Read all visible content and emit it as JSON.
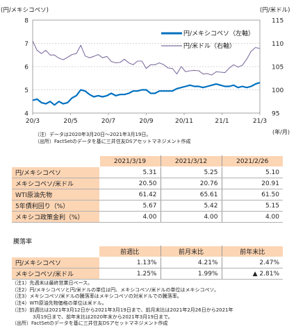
{
  "chart_data": {
    "type": "line",
    "ylabel_left": "(円/メキシコペソ)",
    "ylabel_right": "(円/米ドル)",
    "xlabel": "(年/月)",
    "x_ticks": [
      "20/3",
      "20/5",
      "20/7",
      "20/9",
      "20/11",
      "21/1",
      "21/3"
    ],
    "y_left_ticks": [
      "4",
      "5",
      "6",
      "7",
      "8"
    ],
    "y_right_ticks": [
      "95",
      "100",
      "105",
      "110",
      "115"
    ],
    "ylim_left": [
      4,
      8
    ],
    "ylim_right": [
      95,
      115
    ],
    "x_range": [
      "2020-03-20",
      "2021-03-19"
    ],
    "grid": true,
    "legend_position": "top-right",
    "series": [
      {
        "name": "円/メキシコペソ（左軸）",
        "axis": "left",
        "color": "#0070c0",
        "x": [
          "2020-03-20",
          "2020-03-27",
          "2020-04-03",
          "2020-04-10",
          "2020-04-17",
          "2020-04-24",
          "2020-05-01",
          "2020-05-08",
          "2020-05-15",
          "2020-05-22",
          "2020-05-29",
          "2020-06-05",
          "2020-06-12",
          "2020-06-19",
          "2020-06-26",
          "2020-07-03",
          "2020-07-10",
          "2020-07-17",
          "2020-07-24",
          "2020-07-31",
          "2020-08-07",
          "2020-08-14",
          "2020-08-21",
          "2020-08-28",
          "2020-09-04",
          "2020-09-11",
          "2020-09-18",
          "2020-09-25",
          "2020-10-02",
          "2020-10-09",
          "2020-10-16",
          "2020-10-23",
          "2020-10-30",
          "2020-11-06",
          "2020-11-13",
          "2020-11-20",
          "2020-11-27",
          "2020-12-04",
          "2020-12-11",
          "2020-12-18",
          "2020-12-25",
          "2021-01-01",
          "2021-01-08",
          "2021-01-15",
          "2021-01-22",
          "2021-01-29",
          "2021-02-05",
          "2021-02-12",
          "2021-02-19",
          "2021-02-26",
          "2021-03-05",
          "2021-03-12",
          "2021-03-19"
        ],
        "values": [
          4.55,
          4.6,
          4.45,
          4.4,
          4.5,
          4.35,
          4.5,
          4.4,
          4.45,
          4.65,
          4.75,
          5.0,
          4.95,
          4.8,
          4.7,
          4.75,
          4.7,
          4.75,
          4.85,
          4.75,
          4.8,
          4.8,
          4.85,
          4.95,
          4.95,
          5.0,
          5.0,
          4.85,
          4.85,
          4.95,
          4.95,
          4.95,
          4.95,
          5.05,
          5.1,
          5.15,
          5.2,
          5.15,
          5.15,
          5.1,
          5.15,
          5.2,
          5.25,
          5.2,
          5.15,
          5.15,
          5.2,
          5.1,
          5.15,
          5.1,
          5.15,
          5.25,
          5.31
        ]
      },
      {
        "name": "円/米ドル（右軸）",
        "axis": "right",
        "color": "#7f6f9f",
        "x": [
          "2020-03-20",
          "2020-03-27",
          "2020-04-03",
          "2020-04-10",
          "2020-04-17",
          "2020-04-24",
          "2020-05-01",
          "2020-05-08",
          "2020-05-15",
          "2020-05-22",
          "2020-05-29",
          "2020-06-05",
          "2020-06-12",
          "2020-06-19",
          "2020-06-26",
          "2020-07-03",
          "2020-07-10",
          "2020-07-17",
          "2020-07-24",
          "2020-07-31",
          "2020-08-07",
          "2020-08-14",
          "2020-08-21",
          "2020-08-28",
          "2020-09-04",
          "2020-09-11",
          "2020-09-18",
          "2020-09-25",
          "2020-10-02",
          "2020-10-09",
          "2020-10-16",
          "2020-10-23",
          "2020-10-30",
          "2020-11-06",
          "2020-11-13",
          "2020-11-20",
          "2020-11-27",
          "2020-12-04",
          "2020-12-11",
          "2020-12-18",
          "2020-12-25",
          "2021-01-01",
          "2021-01-08",
          "2021-01-15",
          "2021-01-22",
          "2021-01-29",
          "2021-02-05",
          "2021-02-12",
          "2021-02-19",
          "2021-02-26",
          "2021-03-05",
          "2021-03-12",
          "2021-03-19"
        ],
        "values": [
          110.5,
          108.5,
          107.8,
          108.5,
          107.5,
          107.5,
          106.8,
          106.5,
          107.0,
          107.6,
          107.8,
          109.6,
          107.3,
          106.9,
          107.2,
          107.6,
          106.9,
          107.2,
          106.1,
          105.8,
          105.9,
          106.6,
          105.8,
          105.4,
          106.2,
          106.2,
          104.6,
          105.4,
          105.4,
          105.8,
          105.4,
          104.7,
          104.6,
          103.4,
          105.0,
          103.9,
          104.1,
          104.2,
          104.1,
          103.4,
          103.5,
          103.2,
          103.9,
          103.8,
          103.7,
          104.7,
          105.4,
          104.9,
          105.3,
          106.6,
          108.3,
          109.1,
          108.9
        ]
      }
    ]
  },
  "chart_notes": {
    "note": "（注）データは2020年3月20日～2021年3月19日。",
    "source": "（出所）FactSetのデータを基に三井住友DSアセットマネジメント作成"
  },
  "table1": {
    "headers": [
      "2021/3/19",
      "2021/3/12",
      "2021/2/26"
    ],
    "rows": [
      {
        "label": "円/メキシコペソ",
        "values": [
          "5.31",
          "5.25",
          "5.10"
        ]
      },
      {
        "label": "メキシコペソ/米ドル",
        "values": [
          "20.50",
          "20.76",
          "20.91"
        ]
      },
      {
        "label": "WTI原油先物",
        "values": [
          "61.42",
          "65.61",
          "61.50"
        ]
      },
      {
        "label": "5年債利回り（%）",
        "values": [
          "5.67",
          "5.42",
          "5.15"
        ]
      },
      {
        "label": "メキシコ政策金利（%）",
        "values": [
          "4.00",
          "4.00",
          "4.00"
        ]
      }
    ]
  },
  "table2": {
    "title": "騰落率",
    "headers": [
      "前週比",
      "前月末比",
      "前年末比"
    ],
    "rows": [
      {
        "label": "円/メキシコペソ",
        "values": [
          "1.13%",
          "4.21%",
          "2.47%"
        ]
      },
      {
        "label": "メキシコペソ/米ドル",
        "values": [
          "1.25%",
          "1.99%",
          "▲ 2.81%"
        ]
      }
    ]
  },
  "footnotes": [
    "（注1）先週末は最終営業日ベース。",
    "（注2）円/メキシコペソと円/米ドルの単位は円、メキシコペソ/米ドルの単位はメキシコペソ。",
    "（注3）メキシコペソ/米ドルの騰落率はメキシコペソの対米ドルでの騰落率。",
    "（注4）WTI原油先物価格の単位は米ドル。",
    "（注5）前週比は2021年3月12日から2021年3月19日まで、前月末比は2021年2月26日から2021年",
    "3月19日まで、前年末比は2020年末から2021年3月19日まで。",
    "（出所）FactSetのデータを基に三井住友DSアセットマネジメント作成"
  ]
}
